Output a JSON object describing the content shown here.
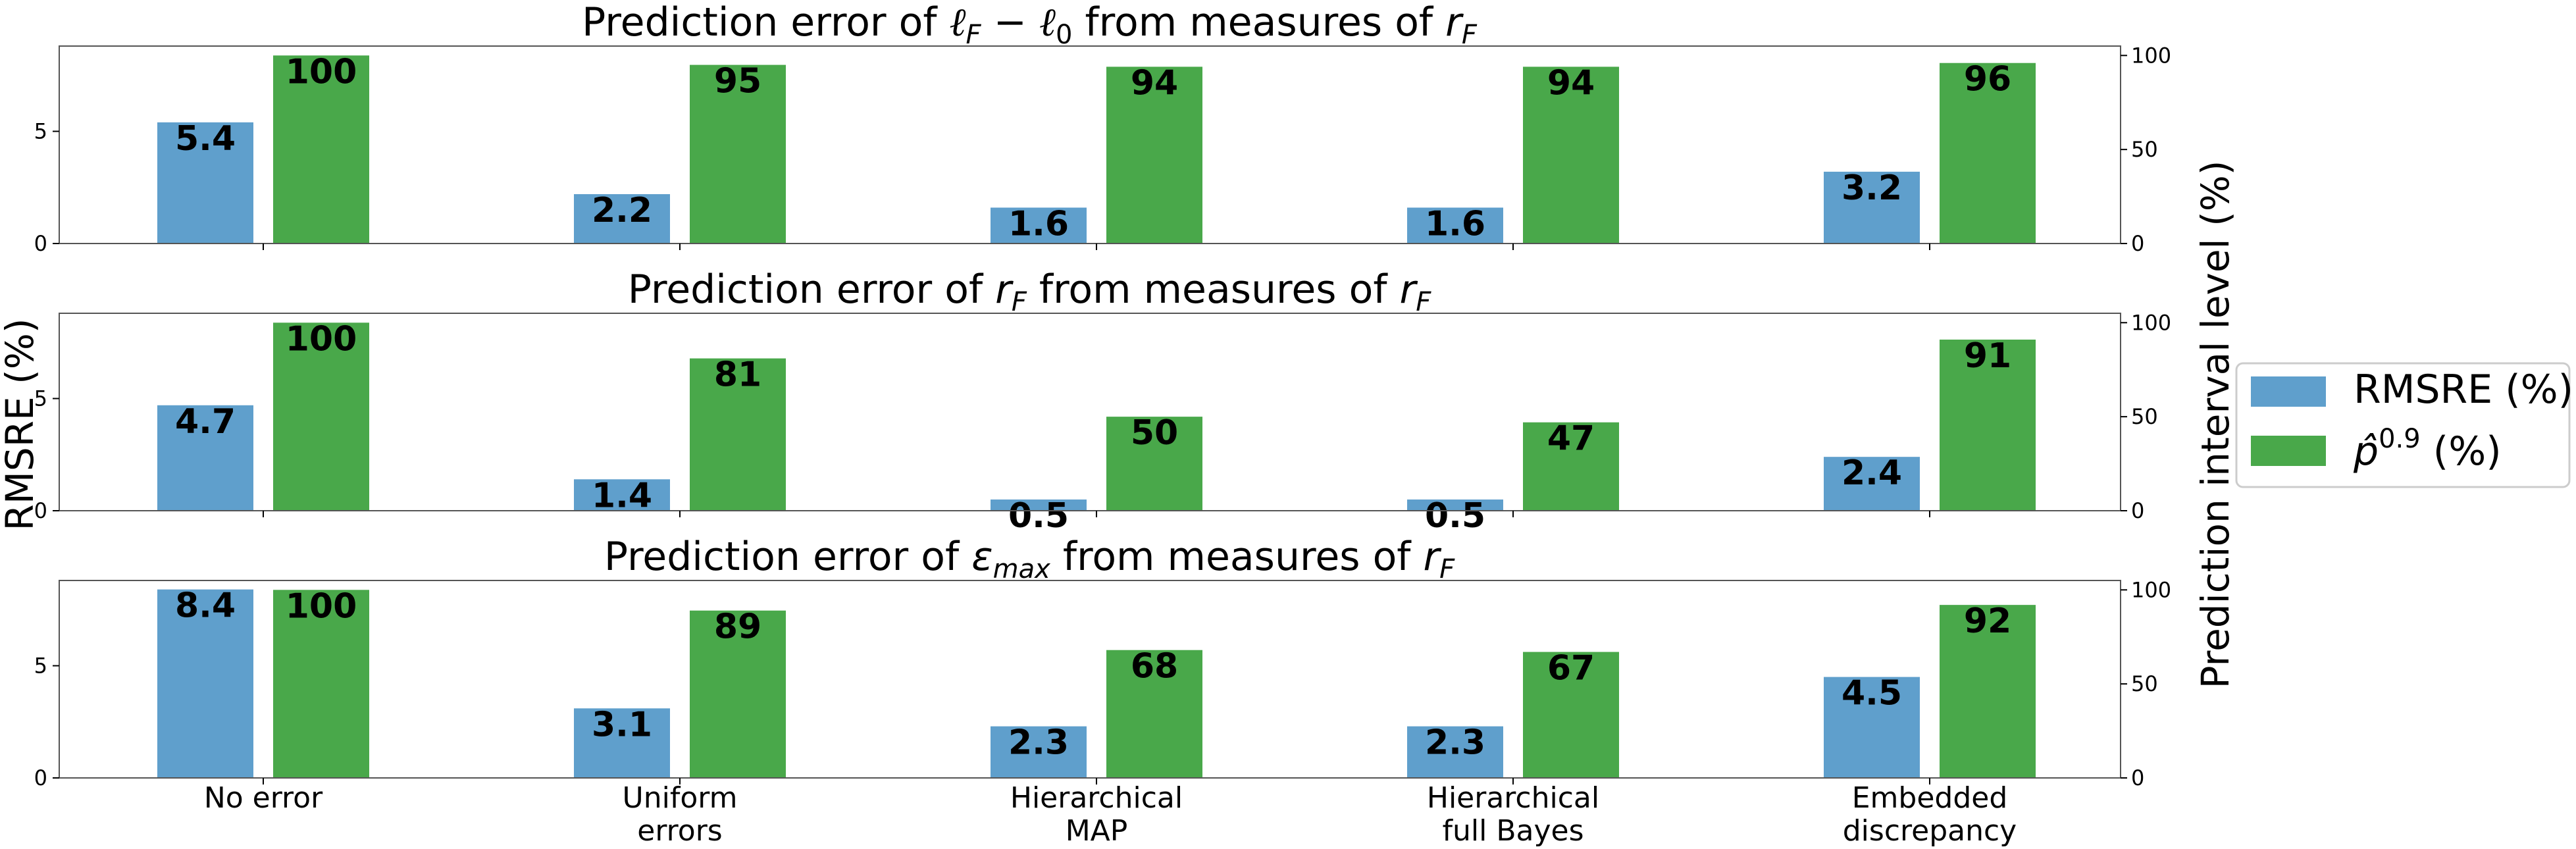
{
  "figure": {
    "left_axis_label": "RMSRE (%)",
    "right_axis_label": "Prediction interval level (%)",
    "categories": [
      "No error",
      "Uniform errors",
      "Hierarchical MAP",
      "Hierarchical full Bayes",
      "Embedded discrepancy"
    ],
    "legend": {
      "placement": "right",
      "items": [
        {
          "label": "RMSRE (%)",
          "color": "#5f9fcc"
        },
        {
          "label": "p̂",
          "sup": "0.9",
          "suffix": " (%)",
          "color": "#49a84a"
        }
      ]
    }
  },
  "chart_data": [
    {
      "type": "bar",
      "title": "Prediction error of ℓF − ℓ0 from measures of rF",
      "categories": [
        "No error",
        "Uniform errors",
        "Hierarchical MAP",
        "Hierarchical full Bayes",
        "Embedded discrepancy"
      ],
      "series": [
        {
          "name": "RMSRE (%)",
          "axis": "left",
          "values": [
            5.4,
            2.2,
            1.6,
            1.6,
            3.2
          ],
          "labels": [
            "5.4",
            "2.2",
            "1.6",
            "1.6",
            "3.2"
          ],
          "color": "#5f9fcc"
        },
        {
          "name": "p̂0.9 (%)",
          "axis": "right",
          "values": [
            100,
            95,
            94,
            94,
            96
          ],
          "labels": [
            "100",
            "95",
            "94",
            "94",
            "96"
          ],
          "color": "#49a84a"
        }
      ],
      "left_ylim": [
        0,
        8.8
      ],
      "left_ticks": [
        "0",
        "5"
      ],
      "right_ylim": [
        0,
        105
      ],
      "right_ticks": [
        "0",
        "50",
        "100"
      ]
    },
    {
      "type": "bar",
      "title": "Prediction error of rF from measures of rF",
      "categories": [
        "No error",
        "Uniform errors",
        "Hierarchical MAP",
        "Hierarchical full Bayes",
        "Embedded discrepancy"
      ],
      "series": [
        {
          "name": "RMSRE (%)",
          "axis": "left",
          "values": [
            4.7,
            1.4,
            0.5,
            0.5,
            2.4
          ],
          "labels": [
            "4.7",
            "1.4",
            "0.5",
            "0.5",
            "2.4"
          ],
          "color": "#5f9fcc"
        },
        {
          "name": "p̂0.9 (%)",
          "axis": "right",
          "values": [
            100,
            81,
            50,
            47,
            91
          ],
          "labels": [
            "100",
            "81",
            "50",
            "47",
            "91"
          ],
          "color": "#49a84a"
        }
      ],
      "left_ylim": [
        0,
        8.8
      ],
      "left_ticks": [
        "0",
        "5"
      ],
      "right_ylim": [
        0,
        105
      ],
      "right_ticks": [
        "0",
        "50",
        "100"
      ]
    },
    {
      "type": "bar",
      "title": "Prediction error of εmax from measures of rF",
      "categories": [
        "No error",
        "Uniform errors",
        "Hierarchical MAP",
        "Hierarchical full Bayes",
        "Embedded discrepancy"
      ],
      "series": [
        {
          "name": "RMSRE (%)",
          "axis": "left",
          "values": [
            8.4,
            3.1,
            2.3,
            2.3,
            4.5
          ],
          "labels": [
            "8.4",
            "3.1",
            "2.3",
            "2.3",
            "4.5"
          ],
          "color": "#5f9fcc"
        },
        {
          "name": "p̂0.9 (%)",
          "axis": "right",
          "values": [
            100,
            89,
            68,
            67,
            92
          ],
          "labels": [
            "100",
            "89",
            "68",
            "67",
            "92"
          ],
          "color": "#49a84a"
        }
      ],
      "left_ylim": [
        0,
        8.8
      ],
      "left_ticks": [
        "0",
        "5"
      ],
      "right_ylim": [
        0,
        105
      ],
      "right_ticks": [
        "0",
        "50",
        "100"
      ]
    }
  ]
}
